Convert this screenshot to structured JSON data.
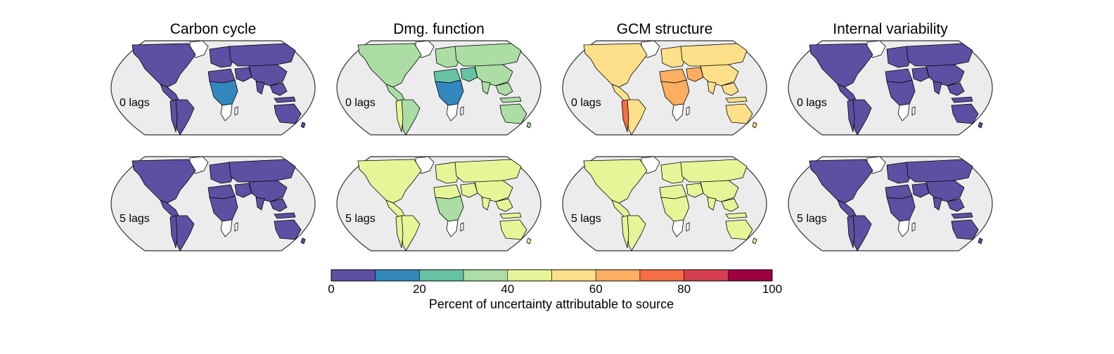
{
  "columns": [
    {
      "title": "Carbon cycle",
      "rows": [
        {
          "label": "0 lags",
          "base": 5,
          "africa_central": 15,
          "mideast": 5,
          "s_america_west": 5,
          "africa_north": 5
        },
        {
          "label": "5 lags",
          "base": 5,
          "africa_central": 5,
          "mideast": 5,
          "s_america_west": 5,
          "africa_north": 5
        }
      ]
    },
    {
      "title": "Dmg. function",
      "rows": [
        {
          "label": "0 lags",
          "base": 35,
          "africa_central": 15,
          "mideast": 25,
          "s_america_west": 45,
          "africa_north": 25
        },
        {
          "label": "5 lags",
          "base": 45,
          "africa_central": 35,
          "mideast": 45,
          "s_america_west": 45,
          "africa_north": 45
        }
      ]
    },
    {
      "title": "GCM structure",
      "rows": [
        {
          "label": "0 lags",
          "base": 55,
          "africa_central": 65,
          "mideast": 65,
          "s_america_west": 75,
          "africa_north": 65
        },
        {
          "label": "5 lags",
          "base": 45,
          "africa_central": 45,
          "mideast": 45,
          "s_america_west": 45,
          "africa_north": 45
        }
      ]
    },
    {
      "title": "Internal variability",
      "rows": [
        {
          "label": "0 lags",
          "base": 5,
          "africa_central": 5,
          "mideast": 5,
          "s_america_west": 5,
          "africa_north": 5
        },
        {
          "label": "5 lags",
          "base": 5,
          "africa_central": 5,
          "mideast": 5,
          "s_america_west": 5,
          "africa_north": 5
        }
      ]
    }
  ],
  "colorbar": {
    "label": "Percent of uncertainty attributable to source",
    "ticks": [
      "0",
      "20",
      "40",
      "60",
      "80",
      "100"
    ],
    "bins": [
      0,
      10,
      20,
      30,
      40,
      50,
      60,
      70,
      80,
      90,
      100
    ],
    "colors": [
      "#5e4fa2",
      "#3288bd",
      "#66c2a5",
      "#abdda4",
      "#e6f598",
      "#fee08b",
      "#fdae61",
      "#f46d43",
      "#d53e4f",
      "#9e0142"
    ]
  },
  "style": {
    "ocean": "#ececec",
    "no_data": "#ffffff",
    "border": "#000000"
  }
}
